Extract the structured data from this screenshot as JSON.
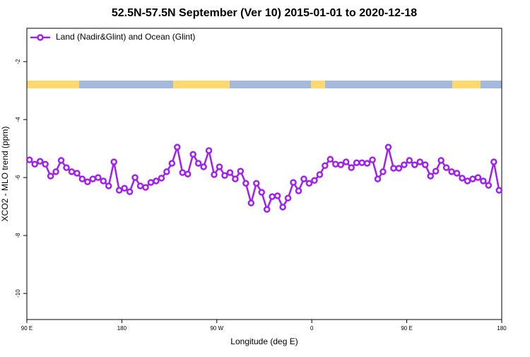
{
  "chart_data": {
    "type": "line",
    "title": "52.5N-57.5N September (Ver 10)   2015-01-01 to 2020-12-18",
    "x_label": "Longitude (deg E)",
    "y_label": "XCO2 - MLO trend (ppm)",
    "x": [
      92.5,
      97.5,
      102.5,
      107.5,
      112.5,
      117.5,
      122.5,
      127.5,
      132.5,
      137.5,
      142.5,
      147.5,
      152.5,
      157.5,
      162.5,
      167.5,
      172.5,
      177.5,
      182.5,
      187.5,
      192.5,
      197.5,
      202.5,
      207.5,
      212.5,
      217.5,
      222.5,
      227.5,
      232.5,
      237.5,
      242.5,
      247.5,
      252.5,
      257.5,
      262.5,
      267.5,
      272.5,
      277.5,
      282.5,
      287.5,
      292.5,
      297.5,
      302.5,
      307.5,
      312.5,
      317.5,
      322.5,
      327.5,
      332.5,
      337.5,
      342.5,
      347.5,
      352.5,
      357.5,
      362.5,
      367.5,
      372.5,
      377.5,
      382.5,
      387.5,
      392.5,
      397.5,
      402.5,
      407.5,
      412.5,
      417.5,
      422.5,
      427.5,
      432.5,
      437.5,
      442.5,
      447.5,
      452.5,
      457.5,
      462.5,
      467.5,
      472.5,
      477.5,
      482.5,
      487.5,
      492.5,
      497.5,
      502.5,
      507.5,
      512.5,
      517.5,
      522.5,
      527.5,
      532.5,
      537.5
    ],
    "series": [
      {
        "name": "Land (Nadir&Glint) and Ocean (Glint)",
        "color": "#a020f0",
        "values": [
          -5.39,
          -5.54,
          -5.44,
          -5.54,
          -5.95,
          -5.8,
          -5.41,
          -5.66,
          -5.8,
          -5.85,
          -6.05,
          -6.15,
          -6.05,
          -6.0,
          -6.12,
          -6.29,
          -5.46,
          -6.44,
          -6.37,
          -6.49,
          -6.0,
          -6.29,
          -6.34,
          -6.17,
          -6.12,
          -6.02,
          -5.8,
          -5.51,
          -4.95,
          -5.83,
          -5.88,
          -5.2,
          -5.51,
          -5.63,
          -5.07,
          -5.9,
          -5.63,
          -5.93,
          -5.83,
          -6.05,
          -5.78,
          -6.2,
          -6.88,
          -6.2,
          -6.51,
          -7.1,
          -6.66,
          -6.63,
          -7.02,
          -6.71,
          -6.17,
          -6.46,
          -6.05,
          -6.2,
          -6.1,
          -5.9,
          -5.59,
          -5.37,
          -5.54,
          -5.56,
          -5.46,
          -5.66,
          -5.49,
          -5.49,
          -5.51,
          -5.39,
          -6.05,
          -5.8,
          -4.95,
          -5.68,
          -5.68,
          -5.56,
          -5.41,
          -5.56,
          -5.46,
          -5.56,
          -5.95,
          -5.78,
          -5.41,
          -5.66,
          -5.8,
          -5.85,
          -6.02,
          -6.12,
          -6.05,
          -6.0,
          -6.12,
          -6.27,
          -5.46,
          -6.44
        ]
      }
    ],
    "xlim": [
      90,
      540
    ],
    "xticks": [
      {
        "value": 90,
        "label": "90 E"
      },
      180,
      {
        "value": 270,
        "label": "90 W"
      },
      {
        "value": 360,
        "label": "0"
      },
      {
        "value": 450,
        "label": "90 E"
      },
      {
        "value": 540,
        "label": "180"
      }
    ],
    "ylim": [
      -10.9,
      -0.85
    ],
    "yticks": [
      -2,
      -4,
      -6,
      -8,
      -10
    ],
    "legend": "top-left"
  }
}
